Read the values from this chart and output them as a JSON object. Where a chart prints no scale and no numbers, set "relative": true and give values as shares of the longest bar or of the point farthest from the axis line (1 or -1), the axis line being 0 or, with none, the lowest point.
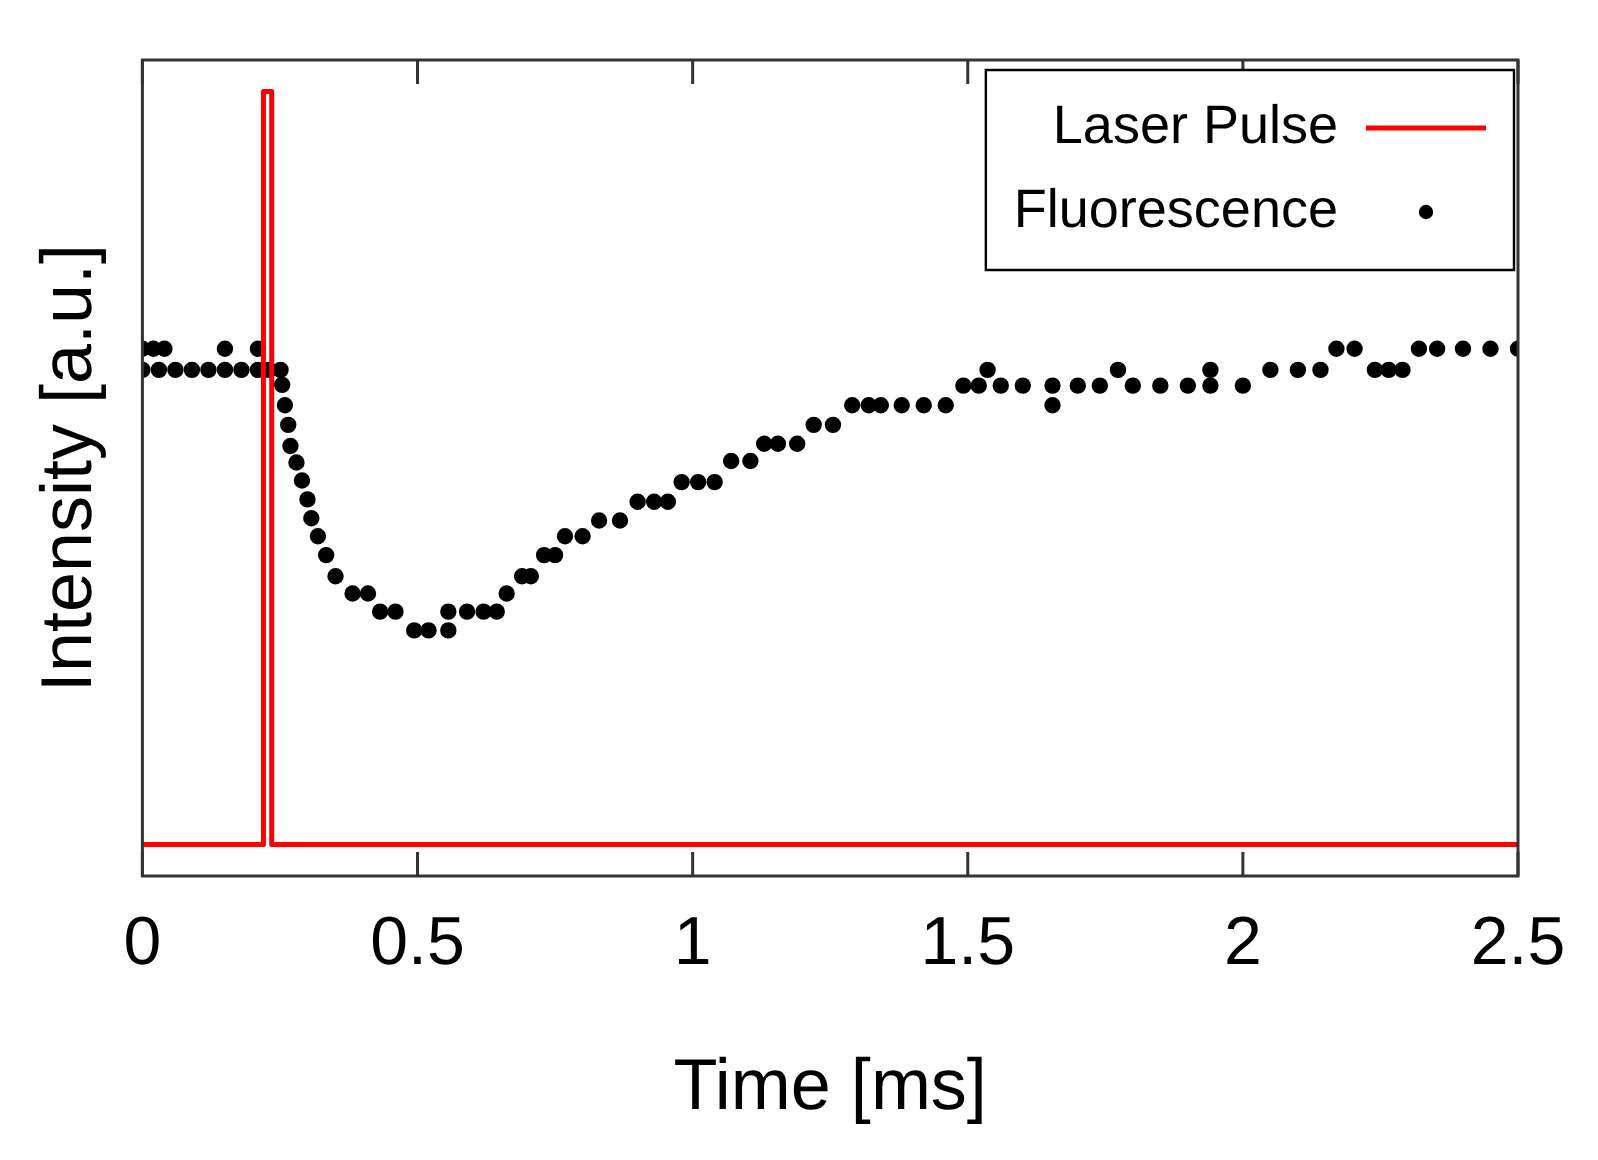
{
  "chart_data": {
    "type": "line",
    "xlabel": "Time [ms]",
    "ylabel": "Intensity [a.u.]",
    "relative": true,
    "xlim": [
      0,
      2.5
    ],
    "xticks": [
      0,
      0.5,
      1,
      1.5,
      2,
      2.5
    ],
    "grid": false,
    "legend": "top right",
    "series": [
      {
        "name": "Laser Pulse",
        "color": "#ff0000",
        "marker": "none",
        "line_style": "solid",
        "x": [
          0,
          0.22,
          0.22,
          0.235,
          0.235,
          2.5
        ],
        "values": [
          0.04,
          0.04,
          1,
          1,
          0.04,
          0.04
        ]
      },
      {
        "name": "Fluorescence",
        "type": "scatter",
        "color": "#000000",
        "marker": "circle",
        "x": [
          0,
          0,
          0.02,
          0.04,
          0.03,
          0.06,
          0.09,
          0.12,
          0.15,
          0.15,
          0.18,
          0.21,
          0.21,
          0.23,
          0.251,
          0.254,
          0.259,
          0.265,
          0.269,
          0.28,
          0.29,
          0.3,
          0.307,
          0.319,
          0.334,
          0.351,
          0.382,
          0.41,
          0.432,
          0.46,
          0.494,
          0.52,
          0.556,
          0.556,
          0.59,
          0.62,
          0.644,
          0.662,
          0.69,
          0.706,
          0.73,
          0.75,
          0.768,
          0.8,
          0.83,
          0.868,
          0.9,
          0.93,
          0.955,
          0.98,
          1.01,
          1.04,
          1.07,
          1.105,
          1.13,
          1.155,
          1.19,
          1.22,
          1.255,
          1.29,
          1.32,
          1.342,
          1.38,
          1.42,
          1.46,
          1.492,
          1.52,
          1.536,
          1.56,
          1.6,
          1.654,
          1.654,
          1.7,
          1.74,
          1.773,
          1.8,
          1.85,
          1.9,
          1.941,
          1.941,
          2,
          2.05,
          2.1,
          2.141,
          2.17,
          2.203,
          2.24,
          2.265,
          2.29,
          2.32,
          2.353,
          2.4,
          2.45,
          2.5
        ],
        "values": [
          0.645,
          0.672,
          0.672,
          0.672,
          0.645,
          0.645,
          0.645,
          0.645,
          0.645,
          0.672,
          0.645,
          0.645,
          0.672,
          0.645,
          0.645,
          0.626,
          0.6,
          0.575,
          0.548,
          0.527,
          0.504,
          0.48,
          0.456,
          0.433,
          0.409,
          0.382,
          0.36,
          0.36,
          0.337,
          0.337,
          0.313,
          0.313,
          0.313,
          0.337,
          0.337,
          0.337,
          0.337,
          0.36,
          0.382,
          0.382,
          0.409,
          0.409,
          0.433,
          0.433,
          0.453,
          0.453,
          0.477,
          0.477,
          0.477,
          0.502,
          0.502,
          0.502,
          0.529,
          0.529,
          0.551,
          0.551,
          0.551,
          0.575,
          0.575,
          0.6,
          0.6,
          0.6,
          0.6,
          0.6,
          0.6,
          0.625,
          0.625,
          0.645,
          0.625,
          0.625,
          0.6,
          0.625,
          0.625,
          0.625,
          0.645,
          0.625,
          0.625,
          0.625,
          0.645,
          0.625,
          0.625,
          0.645,
          0.645,
          0.645,
          0.672,
          0.672,
          0.645,
          0.645,
          0.645,
          0.672,
          0.672,
          0.672,
          0.672,
          0.672
        ]
      }
    ]
  }
}
